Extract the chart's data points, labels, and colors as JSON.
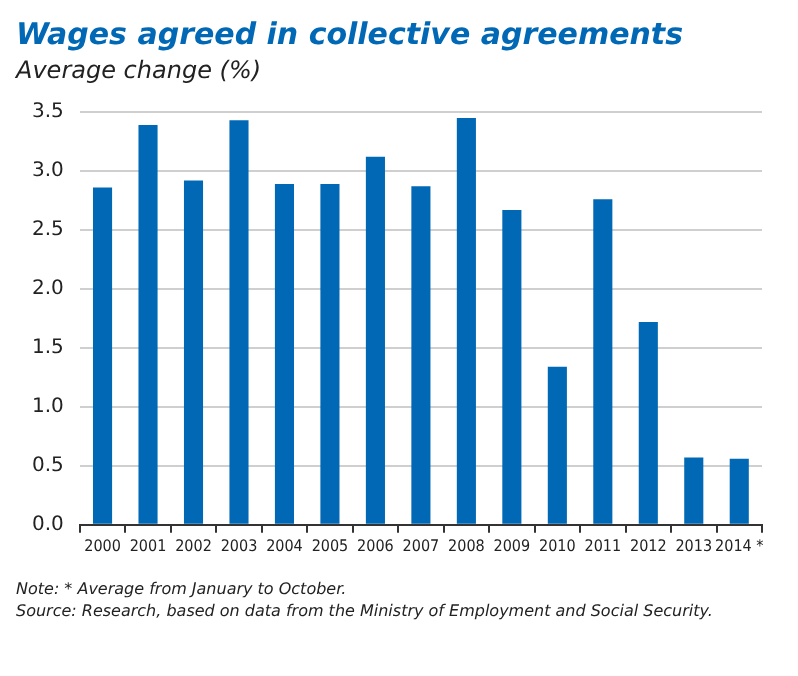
{
  "chart_data": {
    "type": "bar",
    "title": "Wages agreed in collective agreements",
    "ylabel": "Average change (%)",
    "categories": [
      "2000",
      "2001",
      "2002",
      "2003",
      "2004",
      "2005",
      "2006",
      "2007",
      "2008",
      "2009",
      "2010",
      "2011",
      "2012",
      "2013",
      "2014 *"
    ],
    "values": [
      2.86,
      3.39,
      2.92,
      3.43,
      2.89,
      2.89,
      3.12,
      2.87,
      3.45,
      2.67,
      1.34,
      2.76,
      1.72,
      0.57,
      0.56
    ],
    "color": "#0068b4",
    "ylim": [
      0,
      3.5
    ],
    "yticks": [
      {
        "value": 0,
        "label": "0.0"
      },
      {
        "value": 0.5,
        "label": "0.5"
      },
      {
        "value": 1,
        "label": "1.0"
      },
      {
        "value": 1.5,
        "label": "1.5"
      },
      {
        "value": 2,
        "label": "2.0"
      },
      {
        "value": 2.5,
        "label": "2.5"
      },
      {
        "value": 3,
        "label": "3.0"
      },
      {
        "value": 3.5,
        "label": "3.5"
      }
    ],
    "grid": "y",
    "legend": false,
    "annotations": [
      "Note: * Average from January to October.",
      "Source: Research, based on data from the Ministry of Employment and Social Security."
    ]
  }
}
